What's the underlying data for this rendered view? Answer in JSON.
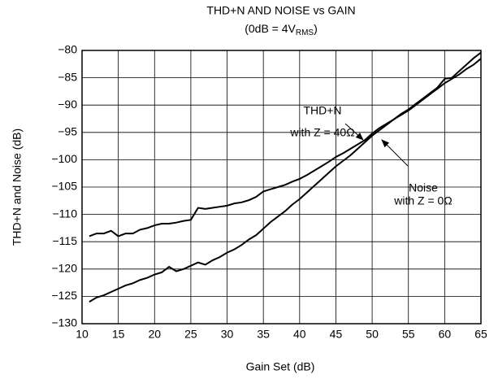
{
  "chart_data": {
    "type": "line",
    "title": "THD+N AND NOISE vs GAIN",
    "subtitle": [
      "(0dB = 4V",
      "RMS",
      ")"
    ],
    "x_label": "Gain Set (dB)",
    "y_label": "THD+N and Noise (dB)",
    "annotations": [
      "THD+N",
      "with Z = 40Ω",
      "Noise",
      "with Z = 0Ω"
    ],
    "x": [
      11,
      12,
      13,
      14,
      15,
      16,
      17,
      18,
      19,
      20,
      21,
      22,
      23,
      24,
      25,
      26,
      27,
      28,
      29,
      30,
      31,
      32,
      33,
      34,
      35,
      36,
      37,
      38,
      39,
      40,
      41,
      42,
      43,
      44,
      45,
      46,
      47,
      48,
      49,
      50,
      51,
      52,
      53,
      54,
      55,
      56,
      57,
      58,
      59,
      60,
      61,
      62,
      63,
      64,
      65
    ],
    "series": [
      {
        "name": "THD+N",
        "color": "#000000",
        "values": [
          -114,
          -113.5,
          -113.5,
          -113,
          -114,
          -113.5,
          -113.5,
          -112.8,
          -112.5,
          -112,
          -111.7,
          -111.7,
          -111.5,
          -111.2,
          -111,
          -108.8,
          -109,
          -108.8,
          -108.6,
          -108.4,
          -108,
          -107.8,
          -107.4,
          -106.8,
          -105.8,
          -105.4,
          -105,
          -104.6,
          -104,
          -103.5,
          -102.8,
          -102,
          -101.2,
          -100.4,
          -99.5,
          -98.8,
          -98,
          -97.2,
          -96.4,
          -95.2,
          -94.2,
          -93.4,
          -92.6,
          -91.6,
          -90.8,
          -89.8,
          -88.8,
          -87.8,
          -86.8,
          -85.2,
          -85,
          -83.8,
          -82.6,
          -81.4,
          -80.4
        ]
      },
      {
        "name": "Noise",
        "color": "#000000",
        "values": [
          -126,
          -125.2,
          -124.8,
          -124.2,
          -123.6,
          -123,
          -122.6,
          -122,
          -121.6,
          -121,
          -120.6,
          -119.6,
          -120.4,
          -120,
          -119.4,
          -118.8,
          -119.2,
          -118.4,
          -117.8,
          -117,
          -116.4,
          -115.6,
          -114.6,
          -113.8,
          -112.6,
          -111.4,
          -110.4,
          -109.4,
          -108.2,
          -107.2,
          -106,
          -104.8,
          -103.6,
          -102.4,
          -101.2,
          -100.2,
          -99.2,
          -98,
          -96.8,
          -95.6,
          -94.6,
          -93.6,
          -92.6,
          -91.8,
          -91,
          -90,
          -89,
          -88,
          -87,
          -86,
          -85.2,
          -84.4,
          -83.4,
          -82.6,
          -81.5
        ]
      }
    ],
    "xlim": [
      10,
      65
    ],
    "xticks": [
      10,
      15,
      20,
      25,
      30,
      35,
      40,
      45,
      50,
      55,
      60,
      65
    ],
    "ylim": [
      -130,
      -80
    ],
    "yticks": [
      {
        "value": -130,
        "label": "−130"
      },
      {
        "value": -125,
        "label": "−125"
      },
      {
        "value": -120,
        "label": "−120"
      },
      {
        "value": -115,
        "label": "−115"
      },
      {
        "value": -110,
        "label": "−110"
      },
      {
        "value": -105,
        "label": "−105"
      },
      {
        "value": -100,
        "label": "−100"
      },
      {
        "value": -95,
        "label": "−95"
      },
      {
        "value": -90,
        "label": "−90"
      },
      {
        "value": -85,
        "label": "−85"
      },
      {
        "value": -80,
        "label": "−80"
      }
    ],
    "grid": true
  }
}
